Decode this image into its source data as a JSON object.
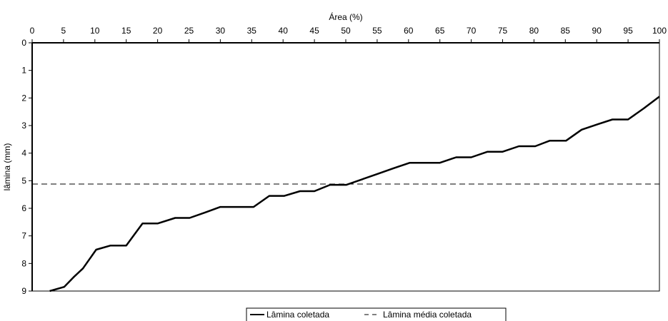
{
  "chart_data": {
    "type": "line",
    "title": "",
    "xlabel": "Área (%)",
    "ylabel": "lâmina (mm)",
    "x_axis_position": "top",
    "y_axis_inverted": true,
    "xlim": [
      0,
      100
    ],
    "ylim": [
      0,
      9
    ],
    "x_ticks": [
      "0",
      "5",
      "10",
      "15",
      "20",
      "25",
      "30",
      "35",
      "40",
      "45",
      "50",
      "55",
      "60",
      "65",
      "70",
      "75",
      "80",
      "85",
      "90",
      "95",
      "100"
    ],
    "y_ticks": [
      "0",
      "1",
      "2",
      "3",
      "4",
      "5",
      "6",
      "7",
      "8",
      "9"
    ],
    "grid": false,
    "legend_placement": "bottom-center",
    "series": [
      {
        "name": "Lâmina coletada",
        "style": "solid",
        "color": "#000000",
        "x": [
          2.8,
          5.1,
          6.6,
          8.1,
          10.2,
          12.5,
          15.0,
          17.6,
          20.0,
          22.8,
          25.1,
          27.6,
          30.0,
          32.5,
          35.3,
          37.8,
          40.2,
          42.7,
          45.0,
          47.5,
          50.1,
          52.6,
          55.1,
          57.6,
          60.2,
          62.5,
          65.0,
          67.6,
          70.0,
          72.6,
          75.0,
          77.6,
          80.2,
          82.5,
          85.1,
          87.6,
          90.2,
          92.5,
          95.0,
          97.5,
          100.0
        ],
        "y": [
          9.0,
          8.85,
          8.5,
          8.18,
          7.5,
          7.35,
          7.35,
          6.55,
          6.55,
          6.35,
          6.35,
          6.15,
          5.95,
          5.95,
          5.95,
          5.55,
          5.55,
          5.38,
          5.38,
          5.15,
          5.15,
          4.95,
          4.75,
          4.55,
          4.35,
          4.35,
          4.35,
          4.15,
          4.15,
          3.95,
          3.95,
          3.75,
          3.75,
          3.55,
          3.55,
          3.15,
          2.95,
          2.78,
          2.78,
          2.38,
          1.95
        ]
      },
      {
        "name": "Lâmina média coletada",
        "style": "dashed",
        "color": "#000000",
        "x": [
          0,
          100
        ],
        "y": [
          5.12,
          5.12
        ]
      }
    ]
  }
}
